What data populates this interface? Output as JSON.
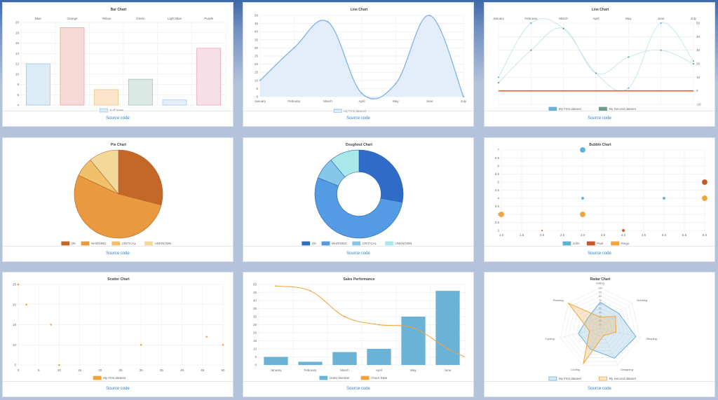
{
  "source_label": "Source code",
  "chart_data": [
    {
      "type": "bar",
      "title": "Bar Chart",
      "categories": [
        "Blue",
        "Orange",
        "Yellow",
        "Green",
        "Light Blue",
        "Purple"
      ],
      "series": [
        {
          "name": "# of Votes",
          "values": [
            12,
            19,
            7,
            9,
            5,
            15
          ]
        }
      ],
      "ylim": [
        4,
        20
      ],
      "yticks": [
        4,
        6,
        8,
        10,
        12,
        14,
        16,
        18,
        20
      ],
      "colors": {
        "fill": [
          "#dcecf7",
          "#f7dad6",
          "#fbe6cc",
          "#dbe9e4",
          "#e3eef8",
          "#f6dfe6"
        ],
        "stroke": [
          "#9cc9e6",
          "#e8a79c",
          "#f1c384",
          "#9ec3b5",
          "#a8cbe8",
          "#e7a9bd"
        ]
      },
      "legend": "bottom"
    },
    {
      "type": "area",
      "title": "Line Chart",
      "categories": [
        "January",
        "February",
        "March",
        "April",
        "May",
        "June",
        "July"
      ],
      "series": [
        {
          "name": "My First dataset",
          "values": [
            10,
            30,
            46,
            2,
            8,
            50,
            0
          ]
        }
      ],
      "ylim": [
        0,
        50
      ],
      "yticks": [
        0,
        5,
        10,
        15,
        20,
        25,
        30,
        35,
        40,
        45,
        50
      ],
      "colors": {
        "line": "#7eb3e6",
        "fill": "#e3eefa"
      },
      "legend": "bottom"
    },
    {
      "type": "line",
      "title": "Line Chart",
      "categories": [
        "January",
        "February",
        "March",
        "April",
        "May",
        "June",
        "July"
      ],
      "series": [
        {
          "name": "My First dataset",
          "values": [
            10,
            50,
            46,
            13,
            2,
            50,
            22
          ]
        },
        {
          "name": "My Second dataset",
          "values": [
            6,
            30,
            46,
            13,
            25,
            30,
            20
          ]
        }
      ],
      "threshold": 0,
      "ylim": [
        -10,
        50
      ],
      "yticks": [
        -10,
        0,
        10,
        20,
        30,
        40,
        50
      ],
      "y_axis_side": "right",
      "ylabel": "",
      "x_axis_position": "top",
      "colors": {
        "s1": "#6ab0d8",
        "s2": "#6f9e8c",
        "threshold": "#e85a2a"
      },
      "legend": "bottom"
    },
    {
      "type": "pie",
      "title": "Pie Chart",
      "labels": [
        "OK",
        "WARNING",
        "CRITICAL",
        "UNKNOWN"
      ],
      "values": [
        29,
        53,
        7,
        11
      ],
      "colors": [
        "#c4682a",
        "#e99a3e",
        "#f0c06a",
        "#f2d99a"
      ],
      "legend": "bottom"
    },
    {
      "type": "pie",
      "subtype": "doughnut",
      "title": "Doughout Chart",
      "labels": [
        "OK",
        "WARNING",
        "CRITICAL",
        "UNKNOWN"
      ],
      "values": [
        28,
        53,
        8,
        11
      ],
      "colors": [
        "#2e6cc7",
        "#539be3",
        "#86c6e8",
        "#a8e8ea"
      ],
      "legend": "bottom"
    },
    {
      "type": "scatter",
      "subtype": "bubble",
      "title": "Bubble Chart",
      "series": [
        {
          "name": "John",
          "points": [
            [
              3,
              7,
              3
            ],
            [
              3,
              4,
              1.5
            ],
            [
              5,
              4,
              1.5
            ]
          ]
        },
        {
          "name": "Paul",
          "points": [
            [
              2,
              2,
              0.8
            ],
            [
              4,
              2,
              1.5
            ],
            [
              6,
              5,
              3
            ]
          ]
        },
        {
          "name": "Ringo",
          "points": [
            [
              1,
              3,
              3
            ],
            [
              3,
              3,
              3
            ],
            [
              6,
              4,
              3
            ]
          ]
        }
      ],
      "xlim": [
        1,
        6
      ],
      "xticks": [
        1.0,
        1.5,
        2.0,
        2.5,
        3.0,
        3.5,
        4.0,
        4.5,
        5.0,
        5.5,
        6.0
      ],
      "ylim": [
        2,
        7
      ],
      "yticks": [
        2.0,
        2.5,
        3.0,
        3.5,
        4.0,
        4.5,
        5.0,
        5.5,
        6.0,
        6.5,
        7.0
      ],
      "colors": {
        "John": "#5db4d9",
        "Paul": "#c8592a",
        "Ringo": "#f2a33a"
      },
      "legend": "bottom"
    },
    {
      "type": "scatter",
      "title": "Scatter Chart",
      "series": [
        {
          "name": "My First dataset",
          "points": [
            [
              0,
              25
            ],
            [
              2,
              20
            ],
            [
              8,
              15
            ],
            [
              10,
              5
            ],
            [
              30,
              10
            ],
            [
              46,
              12
            ],
            [
              50,
              10
            ]
          ]
        }
      ],
      "xlim": [
        0,
        50
      ],
      "xticks": [
        0,
        5,
        10,
        15,
        20,
        25,
        30,
        35,
        40,
        45,
        50
      ],
      "ylim": [
        5,
        25
      ],
      "yticks": [
        5,
        10,
        15,
        20,
        25
      ],
      "colors": {
        "point": "#f2a33a"
      },
      "legend": "bottom"
    },
    {
      "type": "bar",
      "title": "Sales Performance",
      "categories": [
        "January",
        "February",
        "March",
        "April",
        "May",
        "June"
      ],
      "series": [
        {
          "name": "Order Number",
          "type": "bar",
          "values": [
            5,
            2,
            8,
            10,
            30,
            46
          ]
        },
        {
          "name": "Churn Rate",
          "type": "line",
          "values": [
            49,
            46,
            30,
            25,
            23,
            10
          ]
        }
      ],
      "ylim": [
        0,
        50
      ],
      "yticks": [
        0,
        5,
        10,
        15,
        20,
        25,
        30,
        35,
        40,
        45,
        50
      ],
      "colors": {
        "bar": "#6ab2d6",
        "line": "#f2a33a"
      },
      "legend": "bottom"
    },
    {
      "type": "radar",
      "title": "Radar Chart",
      "axes": [
        "Eating",
        "Drinking",
        "Sleeping",
        "Designing",
        "Coding",
        "Cycling",
        "Running"
      ],
      "series": [
        {
          "name": "My First dataset",
          "values": [
            65,
            59,
            90,
            81,
            56,
            55,
            40
          ]
        },
        {
          "name": "My Second dataset",
          "values": [
            28,
            48,
            40,
            19,
            96,
            27,
            100
          ]
        }
      ],
      "rlim": [
        0,
        100
      ],
      "rticks": [
        10,
        20,
        30,
        40,
        50,
        60,
        70,
        80,
        90,
        100
      ],
      "colors": {
        "s1": "#6ab0d8",
        "s2": "#f2a33a"
      },
      "legend": "bottom"
    }
  ]
}
